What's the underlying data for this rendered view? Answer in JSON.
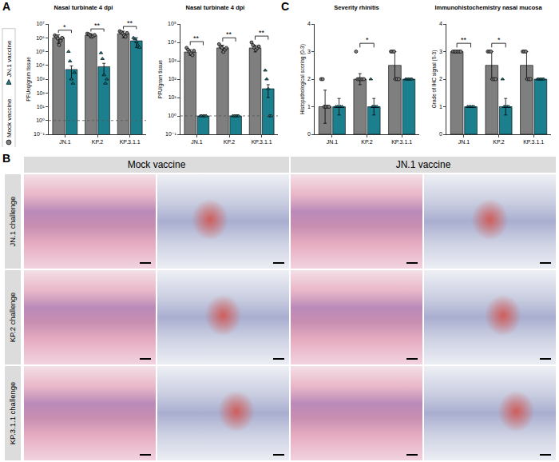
{
  "panel_letters": [
    "A",
    "B",
    "C"
  ],
  "chart_data": [
    {
      "type": "bar",
      "title": "Nasal turbinate 4 dpi",
      "y_label": "PFUeq/gram tissue",
      "categories": [
        "JN.1",
        "KP.2",
        "KP.3.1.1"
      ],
      "log": "y",
      "grid": false,
      "legend": "left",
      "ylim": [
        0.1,
        10000000
      ],
      "yticks": [
        {
          "value": 0.1,
          "label": "10⁻¹"
        },
        {
          "value": 1,
          "label": "10⁰"
        },
        {
          "value": 10,
          "label": "10¹"
        },
        {
          "value": 100,
          "label": "10²"
        },
        {
          "value": 1000,
          "label": "10³"
        },
        {
          "value": 10000,
          "label": "10⁴"
        },
        {
          "value": 100000,
          "label": "10⁵"
        },
        {
          "value": 1000000,
          "label": "10⁶"
        },
        {
          "value": 10000000,
          "label": "10⁷"
        }
      ],
      "limit_line": 1,
      "series": [
        {
          "name": "Mock vaccine",
          "color": "#7f7f7f",
          "marker": "circle",
          "values": [
            1000000,
            1500000,
            2000000
          ],
          "errors": [
            600000,
            500000,
            1000000
          ],
          "points": [
            [
              1500000,
              1200000,
              900000,
              300000,
              600000,
              1000000
            ],
            [
              2000000,
              1800000,
              1500000,
              1200000,
              1300000,
              1600000
            ],
            [
              3000000,
              2500000,
              2000000,
              1500000,
              1200000,
              2200000
            ]
          ]
        },
        {
          "name": "JN.1 vaccine",
          "color": "#1b7f8e",
          "marker": "triangle-up",
          "values": [
            5000,
            8000,
            600000
          ],
          "errors": [
            4000,
            6000,
            400000
          ],
          "points": [
            [
              100000,
              20000,
              1000,
              500,
              3000
            ],
            [
              80000,
              30000,
              2000,
              500,
              1000
            ],
            [
              1000000,
              800000,
              500000,
              300000,
              200000
            ]
          ]
        }
      ],
      "significance": [
        {
          "category": "JN.1",
          "text": "*"
        },
        {
          "category": "KP.2",
          "text": "**"
        },
        {
          "category": "KP.3.1.1",
          "text": "**"
        }
      ]
    },
    {
      "type": "bar",
      "title": "Nasal turbinate 4 dpi",
      "y_label": "PFU/gram tissue",
      "categories": [
        "JN.1",
        "KP.2",
        "KP.3.1.1"
      ],
      "log": "y",
      "grid": false,
      "ylim": [
        0.1,
        100000
      ],
      "yticks": [
        {
          "value": 0.1,
          "label": "10⁻¹"
        },
        {
          "value": 1,
          "label": "10⁰"
        },
        {
          "value": 10,
          "label": "10¹"
        },
        {
          "value": 100,
          "label": "10²"
        },
        {
          "value": 1000,
          "label": "10³"
        },
        {
          "value": 10000,
          "label": "10⁴"
        },
        {
          "value": 100000,
          "label": "10⁵"
        }
      ],
      "limit_line": 1,
      "series": [
        {
          "name": "Mock vaccine",
          "color": "#7f7f7f",
          "marker": "circle",
          "values": [
            3000,
            5000,
            5000
          ],
          "errors": [
            1000,
            2000,
            2000
          ],
          "points": [
            [
              5000,
              4000,
              3000,
              2500,
              2000,
              3500
            ],
            [
              8000,
              6000,
              5000,
              3000,
              4000,
              5000
            ],
            [
              10000,
              7000,
              5000,
              4000,
              5000,
              6000
            ]
          ]
        },
        {
          "name": "JN.1 vaccine",
          "color": "#1b7f8e",
          "marker": "triangle-up",
          "values": [
            1,
            1,
            30
          ],
          "errors": [
            0,
            0,
            20
          ],
          "points": [
            [
              1,
              1,
              1,
              1,
              1
            ],
            [
              1,
              1,
              1,
              1,
              1
            ],
            [
              300,
              100,
              30,
              1,
              1
            ]
          ]
        }
      ],
      "significance": [
        {
          "category": "JN.1",
          "text": "**"
        },
        {
          "category": "KP.2",
          "text": "**"
        },
        {
          "category": "KP.3.1.1",
          "text": "**"
        }
      ]
    },
    {
      "type": "bar",
      "title": "Severity rhinitis",
      "y_label": "Histopathological scoring (0-3)",
      "categories": [
        "JN.1",
        "KP.2",
        "KP.3.1.1"
      ],
      "grid": false,
      "ylim": [
        0,
        4
      ],
      "yticks": [
        0,
        1,
        2,
        3,
        4
      ],
      "series": [
        {
          "name": "Mock vaccine",
          "color": "#7f7f7f",
          "marker": "circle",
          "values": [
            1,
            2,
            2.5
          ],
          "errors": [
            0.6,
            0.2,
            0.5
          ],
          "points": [
            [
              2,
              2,
              1,
              1,
              1,
              1
            ],
            [
              3,
              2,
              2,
              2,
              2,
              2
            ],
            [
              3,
              3,
              3,
              2,
              2,
              2
            ]
          ]
        },
        {
          "name": "JN.1 vaccine",
          "color": "#1b7f8e",
          "marker": "triangle-up",
          "values": [
            1,
            1,
            2
          ],
          "errors": [
            0.3,
            0.3,
            0
          ],
          "points": [
            [
              1,
              1,
              1,
              1,
              1
            ],
            [
              2,
              1,
              1,
              1,
              1
            ],
            [
              2,
              2,
              2,
              2,
              2
            ]
          ]
        }
      ],
      "significance": [
        {
          "category": "KP.2",
          "text": "*"
        }
      ]
    },
    {
      "type": "bar",
      "title": "Immunohistochemistry nasal mucosa",
      "y_label": "Grade of IHC signal (0-3)",
      "categories": [
        "JN.1",
        "KP.2",
        "KP.3.1.1"
      ],
      "grid": false,
      "ylim": [
        0,
        4
      ],
      "yticks": [
        0,
        1,
        2,
        3,
        4
      ],
      "series": [
        {
          "name": "Mock vaccine",
          "color": "#7f7f7f",
          "marker": "circle",
          "values": [
            3,
            2.5,
            2.5
          ],
          "errors": [
            0,
            0.5,
            0.5
          ],
          "points": [
            [
              3,
              3,
              3,
              3,
              3,
              3
            ],
            [
              3,
              3,
              3,
              2,
              2,
              2
            ],
            [
              3,
              3,
              3,
              2,
              2,
              2
            ]
          ]
        },
        {
          "name": "JN.1 vaccine",
          "color": "#1b7f8e",
          "marker": "triangle-up",
          "values": [
            1,
            1,
            2
          ],
          "errors": [
            0,
            0.3,
            0
          ],
          "points": [
            [
              1,
              1,
              1,
              1,
              1
            ],
            [
              2,
              1,
              1,
              1,
              1
            ],
            [
              2,
              2,
              2,
              2,
              2
            ]
          ]
        }
      ],
      "significance": [
        {
          "category": "JN.1",
          "text": "**"
        },
        {
          "category": "KP.2",
          "text": "*"
        }
      ]
    }
  ],
  "panel_b": {
    "columns": [
      "Mock vaccine",
      "JN.1 vaccine"
    ],
    "rows": [
      "JN.1 challenge",
      "KP.2 challenge",
      "KP.3.1.1 challenge"
    ]
  }
}
